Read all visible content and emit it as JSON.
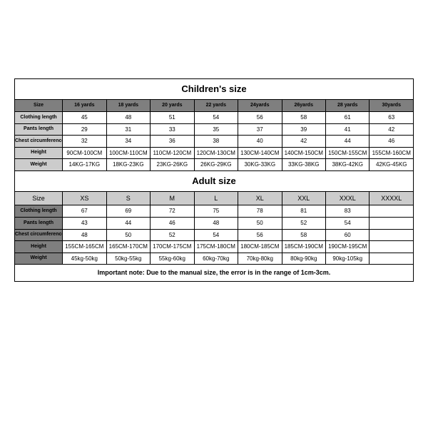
{
  "children": {
    "title": "Children's size",
    "header": [
      "Size",
      "16 yards",
      "18 yards",
      "20 yards",
      "22 yards",
      "24yards",
      "26yards",
      "28 yards",
      "30yards"
    ],
    "rows": [
      {
        "label": "Clothing length",
        "vals": [
          "45",
          "48",
          "51",
          "54",
          "56",
          "58",
          "61",
          "63"
        ]
      },
      {
        "label": "Pants length",
        "vals": [
          "29",
          "31",
          "33",
          "35",
          "37",
          "39",
          "41",
          "42"
        ]
      },
      {
        "label": "Chest circumference 1/2",
        "vals": [
          "32",
          "34",
          "36",
          "38",
          "40",
          "42",
          "44",
          "46"
        ]
      },
      {
        "label": "Height",
        "vals": [
          "90CM-100CM",
          "100CM-110CM",
          "110CM-120CM",
          "120CM-130CM",
          "130CM-140CM",
          "140CM-150CM",
          "150CM-155CM",
          "155CM-160CM"
        ]
      },
      {
        "label": "Weight",
        "vals": [
          "14KG-17KG",
          "18KG-23KG",
          "23KG-26KG",
          "26KG-29KG",
          "30KG-33KG",
          "33KG-38KG",
          "38KG-42KG",
          "42KG-45KG"
        ]
      }
    ]
  },
  "adult": {
    "title": "Adult size",
    "header": [
      "Size",
      "XS",
      "S",
      "M",
      "L",
      "XL",
      "XXL",
      "XXXL",
      "XXXXL"
    ],
    "rows": [
      {
        "label": "Clothing length",
        "vals": [
          "67",
          "69",
          "72",
          "75",
          "78",
          "81",
          "83",
          ""
        ]
      },
      {
        "label": "Pants length",
        "vals": [
          "43",
          "44",
          "46",
          "48",
          "50",
          "52",
          "54",
          ""
        ]
      },
      {
        "label": "Chest circumference 1/2",
        "vals": [
          "48",
          "50",
          "52",
          "54",
          "56",
          "58",
          "60",
          ""
        ]
      },
      {
        "label": "Height",
        "vals": [
          "155CM-165CM",
          "165CM-170CM",
          "170CM-175CM",
          "175CM-180CM",
          "180CM-185CM",
          "185CM-190CM",
          "190CM-195CM",
          ""
        ]
      },
      {
        "label": "Weight",
        "vals": [
          "45kg-50kg",
          "50kg-55kg",
          "55kg-60kg",
          "60kg-70kg",
          "70kg-80kg",
          "80kg-90kg",
          "90kg-105kg",
          ""
        ]
      }
    ]
  },
  "note": "Important note: Due to the manual size, the error is in the range of 1cm-3cm."
}
